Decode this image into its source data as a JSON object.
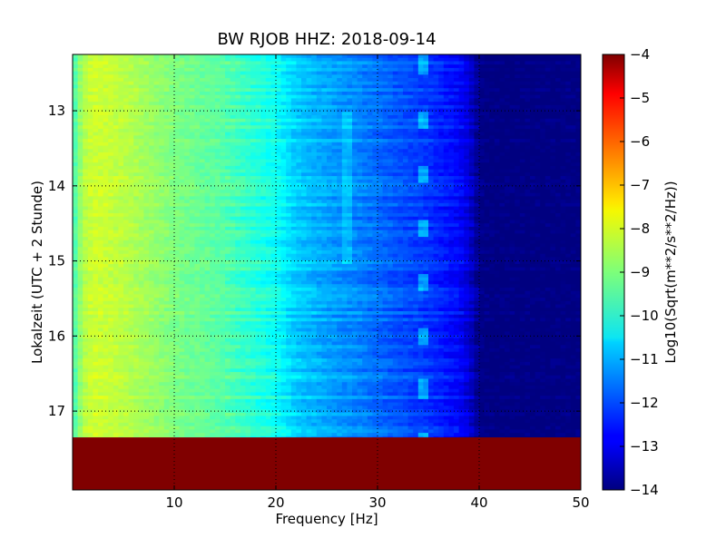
{
  "chart_data": {
    "type": "heatmap",
    "title": "BW RJOB HHZ: 2018-09-14",
    "xlabel": "Frequency [Hz]",
    "ylabel": "Lokalzeit (UTC + 2 Stunde)",
    "xlim": [
      0,
      50
    ],
    "ylim": [
      12.25,
      18.05
    ],
    "y_inverted": true,
    "grid": true,
    "x_ticks": [
      10,
      20,
      30,
      40,
      50
    ],
    "y_ticks": [
      13,
      14,
      15,
      16,
      17
    ],
    "data_end_time": 17.35,
    "no_data_region": {
      "from_time": 17.35,
      "to_time": 18.05,
      "value": -4
    },
    "colorbar": {
      "label": "Log10(Sqrt(m**2/s**2/Hz))",
      "range": [
        -14,
        -4
      ],
      "ticks": [
        -4,
        -5,
        -6,
        -7,
        -8,
        -9,
        -10,
        -11,
        -12,
        -13,
        -14
      ],
      "colormap": "jet"
    },
    "spectrum_profile": {
      "frequency_hz": [
        0,
        1,
        2,
        4,
        6,
        10,
        15,
        20,
        22,
        25,
        28,
        32,
        35,
        38,
        39,
        40,
        41,
        50
      ],
      "log10_psd": [
        -9.7,
        -8.5,
        -8.2,
        -8.3,
        -8.5,
        -9.0,
        -9.4,
        -10.1,
        -10.7,
        -11.1,
        -11.4,
        -11.9,
        -12.2,
        -12.7,
        -13.1,
        -13.9,
        -14,
        -14
      ]
    },
    "annotations": [
      {
        "label": "narrow spectral line",
        "frequency_hz": 34.5
      },
      {
        "label": "faint spectral line",
        "frequency_hz": 27.0
      }
    ]
  }
}
